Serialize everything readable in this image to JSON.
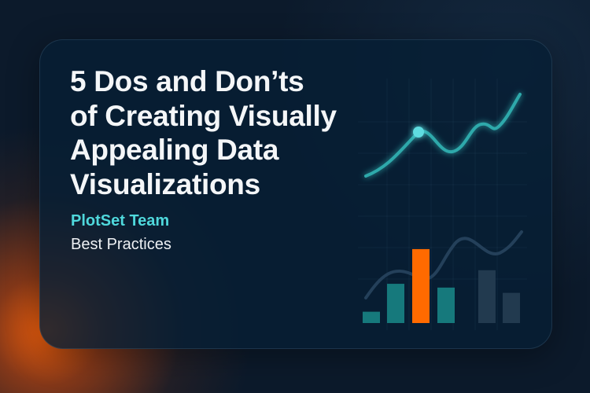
{
  "title_lines": [
    "5 Dos and Don’ts",
    "of Creating Visually",
    "Appealing Data",
    "Visualizations"
  ],
  "author": "PlotSet Team",
  "category": "Best Practices",
  "colors": {
    "background": "#0c1a2b",
    "card": "#061e34",
    "accent_teal": "#3bbcbc",
    "accent_orange": "#ff6a00",
    "muted_bar": "#223a4f"
  },
  "illustration": {
    "line_trend": [
      0.1,
      0.55,
      0.35,
      0.62,
      0.57,
      0.95
    ],
    "highlight_point_index": 1,
    "bars": [
      {
        "value": 0.15,
        "color": "#16797c"
      },
      {
        "value": 0.52,
        "color": "#16797c"
      },
      {
        "value": 0.98,
        "color": "#ff6a00"
      },
      {
        "value": 0.47,
        "color": "#16797c"
      },
      {
        "value": 0.7,
        "color": "#223a4f"
      },
      {
        "value": 0.4,
        "color": "#223a4f"
      }
    ]
  }
}
